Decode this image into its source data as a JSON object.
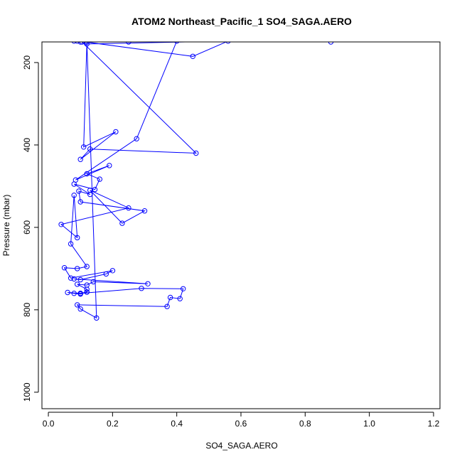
{
  "chart_data": {
    "type": "line",
    "title": "ATOM2 Northeast_Pacific_1 SO4_SAGA.AERO",
    "xlabel": "SO4_SAGA.AERO",
    "ylabel": "Pressure (mbar)",
    "xlim": [
      -0.02,
      1.22
    ],
    "ylim": [
      1040,
      150
    ],
    "y_reversed": true,
    "x_ticks": [
      0.0,
      0.2,
      0.4,
      0.6,
      0.8,
      1.0,
      1.2
    ],
    "x_tick_labels": [
      "0.0",
      "0.2",
      "0.4",
      "0.6",
      "0.8",
      "1.0",
      "1.2"
    ],
    "y_ticks": [
      200,
      400,
      600,
      800,
      1000
    ],
    "y_tick_labels": [
      "200",
      "400",
      "600",
      "800",
      "1000"
    ],
    "grid": false,
    "legend": "none",
    "series_color": "#0000ff",
    "marker": "open-circle",
    "series": [
      {
        "x": [
          0.08,
          0.1,
          0.115,
          0.45,
          0.56,
          0.12,
          0.11,
          0.21,
          0.1,
          0.13,
          0.46,
          0.105,
          0.25,
          0.09,
          0.4,
          0.275,
          0.085,
          0.19,
          0.12,
          0.16,
          0.145,
          0.08,
          0.13,
          0.095,
          0.1,
          0.3,
          0.23,
          0.13,
          0.25,
          0.04,
          0.09,
          0.08,
          0.07,
          0.12,
          0.09,
          0.05,
          0.07,
          0.2,
          0.18,
          0.1,
          0.08,
          0.31,
          0.14,
          0.12,
          0.09,
          0.12,
          0.12,
          0.1,
          0.06,
          0.08,
          0.1,
          0.12,
          0.1,
          0.29,
          0.42,
          0.41,
          0.38,
          0.37,
          0.09,
          0.1,
          0.15,
          0.12,
          0.88
        ],
        "y": [
          148,
          150,
          150,
          185,
          148,
          155,
          405,
          368,
          435,
          410,
          420,
          150,
          150,
          148,
          148,
          385,
          485,
          450,
          470,
          483,
          508,
          495,
          520,
          512,
          538,
          560,
          590,
          510,
          553,
          593,
          625,
          522,
          640,
          695,
          700,
          698,
          723,
          705,
          713,
          727,
          725,
          737,
          732,
          740,
          738,
          750,
          757,
          760,
          758,
          760,
          762,
          757,
          760,
          748,
          749,
          773,
          770,
          792,
          788,
          798,
          820,
          150,
          150
        ]
      }
    ]
  }
}
